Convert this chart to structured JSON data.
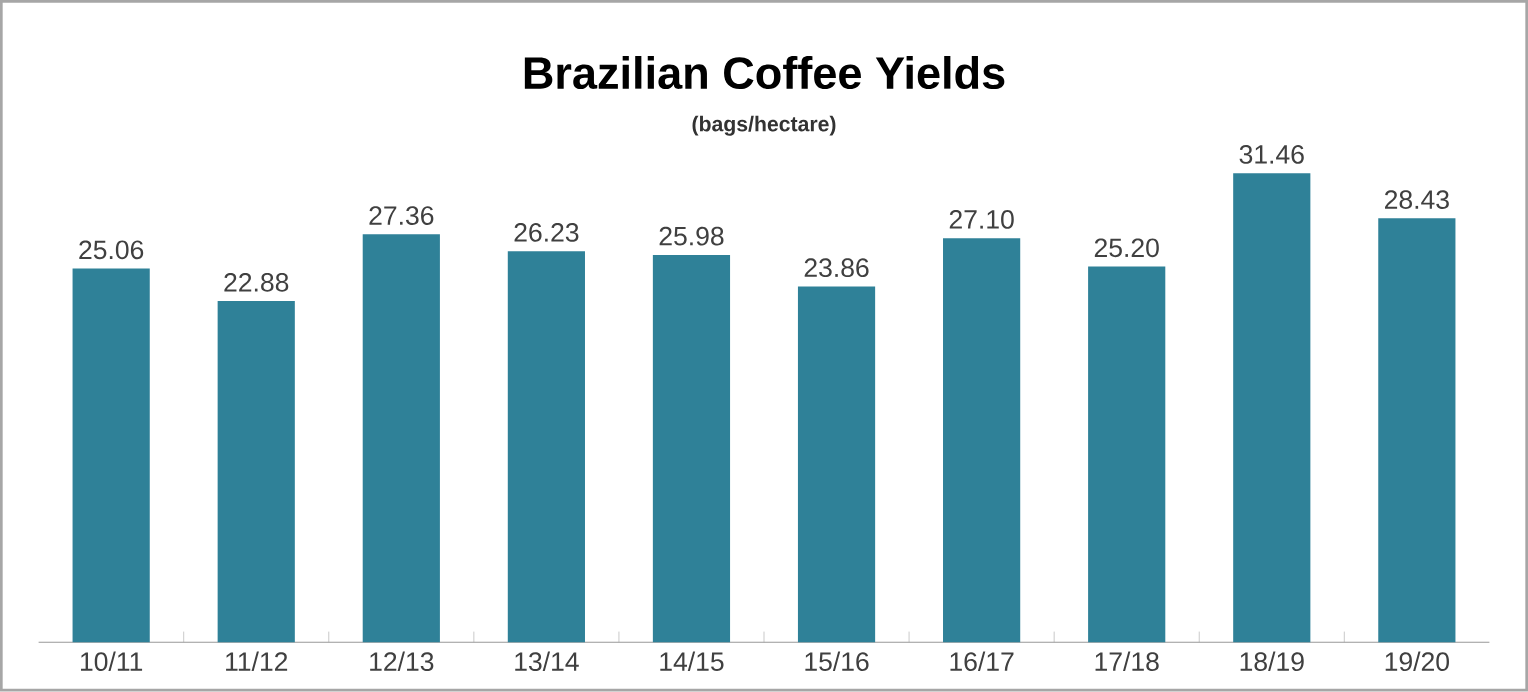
{
  "chart_data": {
    "type": "bar",
    "title": "Brazilian Coffee Yields",
    "subtitle": "(bags/hectare)",
    "categories": [
      "10/11",
      "11/12",
      "12/13",
      "13/14",
      "14/15",
      "15/16",
      "16/17",
      "17/18",
      "18/19",
      "19/20"
    ],
    "values": [
      25.06,
      22.88,
      27.36,
      26.23,
      25.98,
      23.86,
      27.1,
      25.2,
      31.46,
      28.43
    ],
    "value_labels": [
      "25.06",
      "22.88",
      "27.36",
      "26.23",
      "25.98",
      "23.86",
      "27.10",
      "25.20",
      "31.46",
      "28.43"
    ],
    "color": "#2f8198",
    "tick_labels": "x"
  }
}
